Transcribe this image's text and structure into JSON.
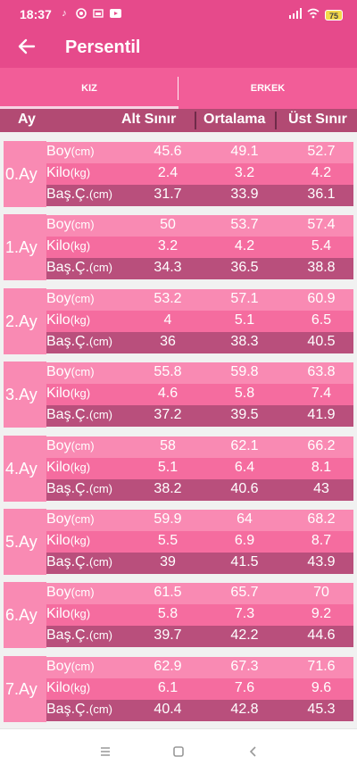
{
  "status": {
    "time": "18:37",
    "battery": "75"
  },
  "app": {
    "title": "Persentil"
  },
  "tabs": {
    "female": "KIZ",
    "male": "ERKEK"
  },
  "columns": {
    "month": "Ay",
    "lower": "Alt Sınır",
    "average": "Ortalama",
    "upper": "Üst Sınır"
  },
  "labels": {
    "height": "Boy",
    "height_unit": "(cm)",
    "weight": "Kilo",
    "weight_unit": "(kg)",
    "head": "Baş.Ç.",
    "head_unit": "(cm)"
  },
  "months": [
    {
      "label": "0.Ay",
      "height": [
        "45.6",
        "49.1",
        "52.7"
      ],
      "weight": [
        "2.4",
        "3.2",
        "4.2"
      ],
      "head": [
        "31.7",
        "33.9",
        "36.1"
      ]
    },
    {
      "label": "1.Ay",
      "height": [
        "50",
        "53.7",
        "57.4"
      ],
      "weight": [
        "3.2",
        "4.2",
        "5.4"
      ],
      "head": [
        "34.3",
        "36.5",
        "38.8"
      ]
    },
    {
      "label": "2.Ay",
      "height": [
        "53.2",
        "57.1",
        "60.9"
      ],
      "weight": [
        "4",
        "5.1",
        "6.5"
      ],
      "head": [
        "36",
        "38.3",
        "40.5"
      ]
    },
    {
      "label": "3.Ay",
      "height": [
        "55.8",
        "59.8",
        "63.8"
      ],
      "weight": [
        "4.6",
        "5.8",
        "7.4"
      ],
      "head": [
        "37.2",
        "39.5",
        "41.9"
      ]
    },
    {
      "label": "4.Ay",
      "height": [
        "58",
        "62.1",
        "66.2"
      ],
      "weight": [
        "5.1",
        "6.4",
        "8.1"
      ],
      "head": [
        "38.2",
        "40.6",
        "43"
      ]
    },
    {
      "label": "5.Ay",
      "height": [
        "59.9",
        "64",
        "68.2"
      ],
      "weight": [
        "5.5",
        "6.9",
        "8.7"
      ],
      "head": [
        "39",
        "41.5",
        "43.9"
      ]
    },
    {
      "label": "6.Ay",
      "height": [
        "61.5",
        "65.7",
        "70"
      ],
      "weight": [
        "5.8",
        "7.3",
        "9.2"
      ],
      "head": [
        "39.7",
        "42.2",
        "44.6"
      ]
    },
    {
      "label": "7.Ay",
      "height": [
        "62.9",
        "67.3",
        "71.6"
      ],
      "weight": [
        "6.1",
        "7.6",
        "9.6"
      ],
      "head": [
        "40.4",
        "42.8",
        "45.3"
      ]
    }
  ],
  "colors": {
    "primary": "#e64a8b",
    "tab_bar": "#f25d98",
    "header": "#b24a73",
    "row_light": "#f98ab3",
    "row_mid": "#f56c9f",
    "row_dark": "#b94f7c"
  }
}
